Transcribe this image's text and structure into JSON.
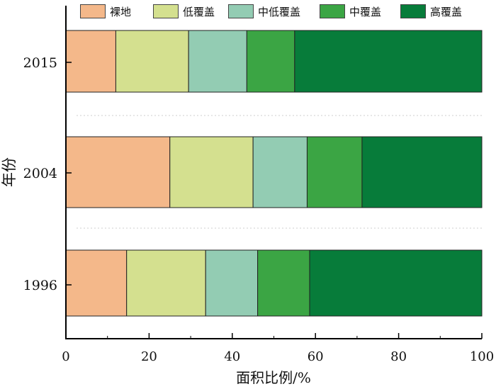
{
  "chart_data": {
    "type": "bar",
    "orientation": "horizontal",
    "stacked": true,
    "categories": [
      "2015",
      "2004",
      "1996"
    ],
    "series": [
      {
        "name": "裸地",
        "values": [
          12,
          25,
          14.6
        ],
        "color": "#f4b88a"
      },
      {
        "name": "低覆盖",
        "values": [
          17.5,
          20,
          19
        ],
        "color": "#d4e08f"
      },
      {
        "name": "中低覆盖",
        "values": [
          14,
          13,
          12.5
        ],
        "color": "#93ccb3"
      },
      {
        "name": "中覆盖",
        "values": [
          11.5,
          13.2,
          12.5
        ],
        "color": "#3ba544"
      },
      {
        "name": "高覆盖",
        "values": [
          45,
          28.8,
          41.4
        ],
        "color": "#077c3a"
      }
    ],
    "xlabel": "面积比例/%",
    "ylabel": "年份",
    "xlim": [
      0,
      100
    ],
    "xticks": [
      "0",
      "20",
      "40",
      "60",
      "80",
      "100"
    ],
    "legend_position": "top",
    "grid": false
  }
}
